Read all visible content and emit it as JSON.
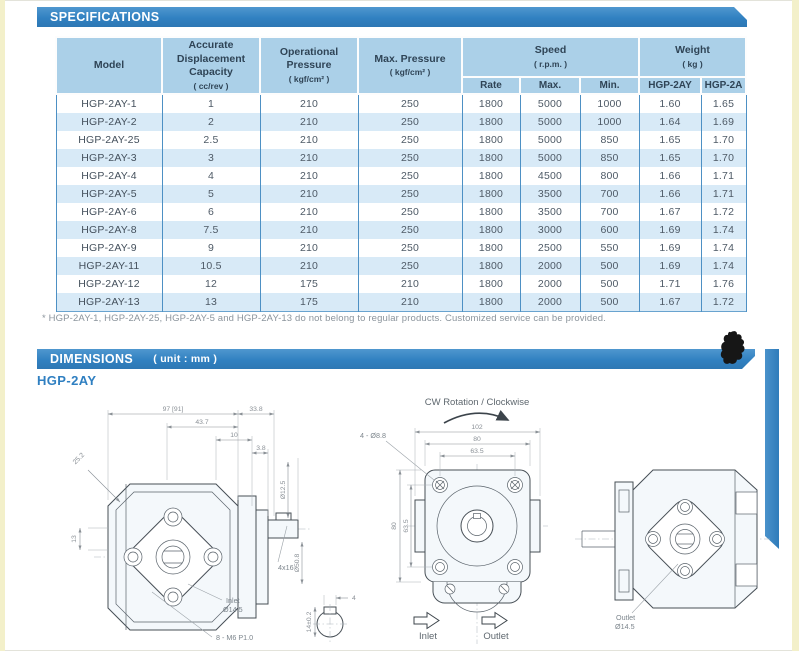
{
  "specifications": {
    "section_title": "SPECIFICATIONS",
    "columns": {
      "model": "Model",
      "capacity": "Accurate Displacement Capacity",
      "capacity_unit": "( cc/rev )",
      "op_pressure": "Operational Pressure",
      "op_pressure_unit": "( kgf/cm² )",
      "max_pressure": "Max. Pressure",
      "max_pressure_unit": "( kgf/cm² )",
      "speed": "Speed",
      "speed_unit": "( r.p.m. )",
      "speed_sub": [
        "Rate",
        "Max.",
        "Min."
      ],
      "weight": "Weight",
      "weight_unit": "( kg )",
      "weight_sub": [
        "HGP-2AY",
        "HGP-2A"
      ]
    },
    "rows": [
      [
        "HGP-2AY-1",
        "1",
        "210",
        "250",
        "1800",
        "5000",
        "1000",
        "1.60",
        "1.65"
      ],
      [
        "HGP-2AY-2",
        "2",
        "210",
        "250",
        "1800",
        "5000",
        "1000",
        "1.64",
        "1.69"
      ],
      [
        "HGP-2AY-25",
        "2.5",
        "210",
        "250",
        "1800",
        "5000",
        "850",
        "1.65",
        "1.70"
      ],
      [
        "HGP-2AY-3",
        "3",
        "210",
        "250",
        "1800",
        "5000",
        "850",
        "1.65",
        "1.70"
      ],
      [
        "HGP-2AY-4",
        "4",
        "210",
        "250",
        "1800",
        "4500",
        "800",
        "1.66",
        "1.71"
      ],
      [
        "HGP-2AY-5",
        "5",
        "210",
        "250",
        "1800",
        "3500",
        "700",
        "1.66",
        "1.71"
      ],
      [
        "HGP-2AY-6",
        "6",
        "210",
        "250",
        "1800",
        "3500",
        "700",
        "1.67",
        "1.72"
      ],
      [
        "HGP-2AY-8",
        "7.5",
        "210",
        "250",
        "1800",
        "3000",
        "600",
        "1.69",
        "1.74"
      ],
      [
        "HGP-2AY-9",
        "9",
        "210",
        "250",
        "1800",
        "2500",
        "550",
        "1.69",
        "1.74"
      ],
      [
        "HGP-2AY-11",
        "10.5",
        "210",
        "250",
        "1800",
        "2000",
        "500",
        "1.69",
        "1.74"
      ],
      [
        "HGP-2AY-12",
        "12",
        "175",
        "210",
        "1800",
        "2000",
        "500",
        "1.71",
        "1.76"
      ],
      [
        "HGP-2AY-13",
        "13",
        "175",
        "210",
        "1800",
        "2000",
        "500",
        "1.67",
        "1.72"
      ]
    ],
    "footnote": "* HGP-2AY-1, HGP-2AY-25, HGP-2AY-5 and HGP-2AY-13 do not belong to regular products.  Customized service can be provided."
  },
  "dimensions": {
    "section_title": "DIMENSIONS",
    "unit_label": "( unit : mm )",
    "model_label": "HGP-2AY",
    "side_view": {
      "dim_width": "97 [91]",
      "dim_shaft": "33.8",
      "dim_437": "43.7",
      "dim_10": "10",
      "dim_38": "3.8",
      "dim_252": "25.2",
      "dim_dia125": "Ø12.5",
      "dim_dia508": "Ø50.8",
      "dim_13": "13",
      "key_label": "4x16",
      "inlet_label": "Inlet",
      "inlet_dia": "Ø14.5",
      "bolt_label": "8 - M6 P1.0",
      "key_height": "14±0.2",
      "key_width": "4"
    },
    "front_view": {
      "rotation_label": "CW Rotation / Clockwise",
      "dim_102": "102",
      "dim_80": "80",
      "dim_635": "63.5",
      "dim_v80": "80",
      "dim_v635": "63.5",
      "holes_label": "4 - Ø8.8",
      "inlet_label": "Inlet",
      "outlet_label": "Outlet"
    },
    "rear_view": {
      "outlet_label": "Outlet",
      "outlet_dia": "Ø14.5"
    }
  },
  "colors": {
    "bar_blue": "#3181c1",
    "table_header_bg": "#abd0e8",
    "row_alt_bg": "#d8eaf7",
    "grid_blue": "#4d90c4",
    "heading_blue": "#2f7fc1"
  }
}
